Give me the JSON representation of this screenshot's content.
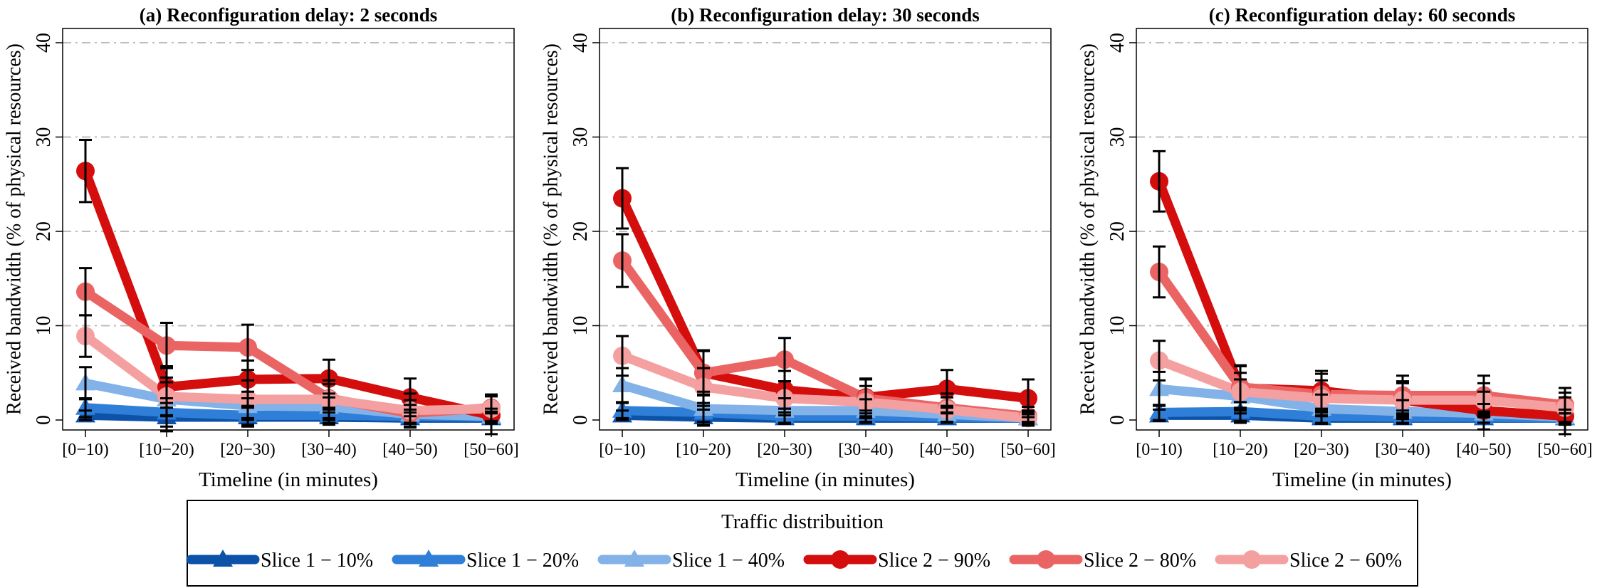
{
  "legend": {
    "title": "Traffic distribuition",
    "items": [
      {
        "label": "Slice 1 − 10%",
        "color": "#0b52a8",
        "marker": "triangle"
      },
      {
        "label": "Slice 1 − 20%",
        "color": "#2f7ed8",
        "marker": "triangle"
      },
      {
        "label": "Slice 1 − 40%",
        "color": "#82b2e8",
        "marker": "triangle"
      },
      {
        "label": "Slice 2 − 90%",
        "color": "#d40d0d",
        "marker": "circle"
      },
      {
        "label": "Slice 2 − 80%",
        "color": "#ea6464",
        "marker": "circle"
      },
      {
        "label": "Slice 2 − 60%",
        "color": "#f5a0a0",
        "marker": "circle"
      }
    ],
    "placement": "bottom"
  },
  "chart_data": [
    {
      "type": "line",
      "title": "(a) Reconfiguration delay: 2 seconds",
      "xlabel": "Timeline (in minutes)",
      "ylabel": "Received bandwidth (% of physical resources)",
      "categories": [
        "[0−10)",
        "[10−20)",
        "[20−30)",
        "[30−40)",
        "[40−50)",
        "[50−60]"
      ],
      "yticks": [
        "0",
        "10",
        "20",
        "30",
        "40"
      ],
      "ylim": [
        0,
        40
      ],
      "grid": "horizontal dashed at 10, 20, 30, 40",
      "series": [
        {
          "name": "Slice 1 − 10%",
          "values": [
            0.5,
            0.3,
            0.3,
            0.3,
            0.2,
            0.2
          ],
          "err": [
            0.5,
            1.5,
            1.0,
            0.8,
            0.6,
            0.5
          ]
        },
        {
          "name": "Slice 1 − 20%",
          "values": [
            1.3,
            0.8,
            0.5,
            0.5,
            0.4,
            0.3
          ],
          "err": [
            1.0,
            1.5,
            1.0,
            0.8,
            0.7,
            0.6
          ]
        },
        {
          "name": "Slice 1 − 40%",
          "values": [
            3.9,
            2.2,
            1.5,
            1.4,
            0.6,
            0.4
          ],
          "err": [
            1.7,
            1.8,
            1.5,
            1.4,
            1.0,
            0.8
          ]
        },
        {
          "name": "Slice 2 − 90%",
          "values": [
            26.4,
            3.5,
            4.3,
            4.4,
            2.4,
            0.5
          ],
          "err": [
            3.3,
            2.2,
            2.0,
            2.0,
            2.0,
            2.0
          ]
        },
        {
          "name": "Slice 2 − 80%",
          "values": [
            13.6,
            7.9,
            7.7,
            2.3,
            0.7,
            1.3
          ],
          "err": [
            2.5,
            2.4,
            2.4,
            1.5,
            1.4,
            1.4
          ]
        },
        {
          "name": "Slice 2 − 60%",
          "values": [
            8.9,
            2.5,
            2.2,
            2.2,
            1.0,
            1.2
          ],
          "err": [
            2.2,
            2.0,
            2.0,
            2.0,
            1.8,
            1.5
          ]
        }
      ]
    },
    {
      "type": "line",
      "title": "(b) Reconfiguration delay: 30 seconds",
      "xlabel": "Timeline (in minutes)",
      "ylabel": "Received bandwidth (% of physical resources)",
      "categories": [
        "[0−10)",
        "[10−20)",
        "[20−30)",
        "[30−40)",
        "[40−50)",
        "[50−60]"
      ],
      "yticks": [
        "0",
        "10",
        "20",
        "30",
        "40"
      ],
      "ylim": [
        0,
        40
      ],
      "grid": "horizontal dashed at 10, 20, 30, 40",
      "series": [
        {
          "name": "Slice 1 − 10%",
          "values": [
            0.5,
            0.3,
            0.2,
            0.2,
            0.2,
            0.2
          ],
          "err": [
            0.5,
            0.8,
            0.6,
            0.5,
            0.5,
            0.4
          ]
        },
        {
          "name": "Slice 1 − 20%",
          "values": [
            1.0,
            0.8,
            0.4,
            0.4,
            0.3,
            0.2
          ],
          "err": [
            0.8,
            1.0,
            0.8,
            0.6,
            0.5,
            0.5
          ]
        },
        {
          "name": "Slice 1 − 40%",
          "values": [
            3.7,
            1.2,
            1.0,
            1.0,
            0.6,
            0.2
          ],
          "err": [
            1.8,
            1.8,
            1.3,
            1.2,
            0.9,
            0.6
          ]
        },
        {
          "name": "Slice 2 − 90%",
          "values": [
            23.5,
            5.0,
            3.2,
            2.4,
            3.3,
            2.3
          ],
          "err": [
            3.2,
            2.3,
            2.0,
            2.0,
            2.0,
            2.0
          ]
        },
        {
          "name": "Slice 2 − 80%",
          "values": [
            16.9,
            5.0,
            6.4,
            2.3,
            1.3,
            0.4
          ],
          "err": [
            2.8,
            2.4,
            2.3,
            2.0,
            1.5,
            1.0
          ]
        },
        {
          "name": "Slice 2 − 60%",
          "values": [
            6.8,
            3.5,
            2.3,
            1.9,
            1.1,
            0.2
          ],
          "err": [
            2.1,
            2.0,
            1.8,
            1.7,
            1.3,
            0.8
          ]
        }
      ]
    },
    {
      "type": "line",
      "title": "(c) Reconfiguration delay: 60 seconds",
      "xlabel": "Timeline (in minutes)",
      "ylabel": "Received bandwidth (% of physical resources)",
      "categories": [
        "[0−10)",
        "[10−20)",
        "[20−30)",
        "[30−40)",
        "[40−50)",
        "[50−60]"
      ],
      "yticks": [
        "0",
        "10",
        "20",
        "30",
        "40"
      ],
      "ylim": [
        0,
        40
      ],
      "grid": "horizontal dashed at 10, 20, 30, 40",
      "series": [
        {
          "name": "Slice 1 − 10%",
          "values": [
            0.5,
            0.5,
            0.2,
            0.2,
            0.2,
            0.2
          ],
          "err": [
            0.6,
            0.8,
            0.6,
            0.5,
            0.5,
            0.5
          ]
        },
        {
          "name": "Slice 1 − 20%",
          "values": [
            0.8,
            0.9,
            0.4,
            0.3,
            0.3,
            0.2
          ],
          "err": [
            0.8,
            1.0,
            0.8,
            0.7,
            0.6,
            0.5
          ]
        },
        {
          "name": "Slice 1 − 40%",
          "values": [
            3.3,
            2.5,
            1.2,
            0.9,
            0.7,
            0.3
          ],
          "err": [
            1.8,
            1.8,
            1.5,
            1.2,
            1.0,
            0.8
          ]
        },
        {
          "name": "Slice 2 − 90%",
          "values": [
            25.3,
            3.4,
            3.1,
            2.1,
            1.0,
            0.4
          ],
          "err": [
            3.2,
            2.3,
            2.1,
            2.0,
            2.0,
            2.0
          ]
        },
        {
          "name": "Slice 2 − 80%",
          "values": [
            15.7,
            3.5,
            2.7,
            2.6,
            2.6,
            1.6
          ],
          "err": [
            2.7,
            2.3,
            2.2,
            2.1,
            2.1,
            1.8
          ]
        },
        {
          "name": "Slice 2 − 60%",
          "values": [
            6.3,
            3.0,
            2.3,
            2.1,
            2.1,
            1.3
          ],
          "err": [
            2.1,
            2.0,
            1.9,
            1.8,
            1.8,
            1.6
          ]
        }
      ]
    }
  ]
}
